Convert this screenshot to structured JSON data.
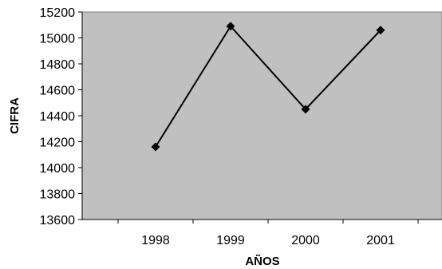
{
  "chart_data": {
    "type": "line",
    "title": "",
    "xlabel": "AÑOS",
    "ylabel": "CIFRA",
    "categories": [
      "1998",
      "1999",
      "2000",
      "2001"
    ],
    "series": [
      {
        "values": [
          14160,
          15090,
          14450,
          15060
        ]
      }
    ],
    "ylim": [
      13600,
      15200
    ],
    "yticks": [
      13600,
      13800,
      14000,
      14200,
      14400,
      14600,
      14800,
      15000,
      15200
    ],
    "grid": false,
    "legend": "none",
    "colors": {
      "plot_background": "#c0c0c0",
      "line": "#000000",
      "marker": "#000000"
    }
  }
}
